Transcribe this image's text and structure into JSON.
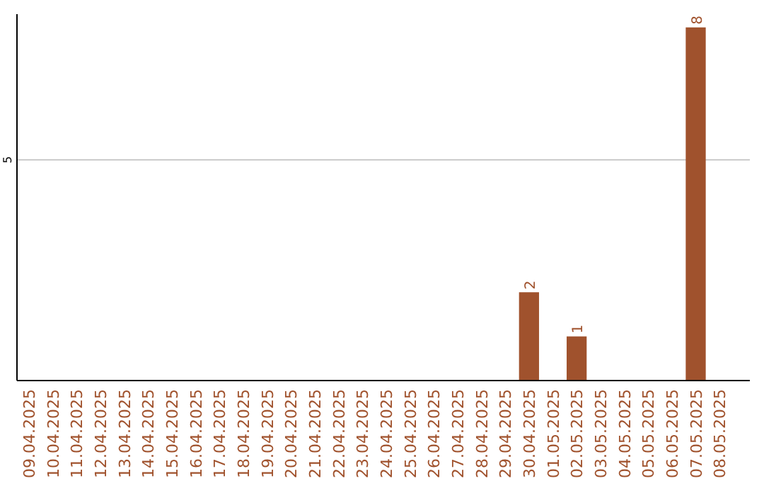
{
  "chart_data": {
    "type": "bar",
    "categories": [
      "09.04.2025",
      "10.04.2025",
      "11.04.2025",
      "12.04.2025",
      "13.04.2025",
      "14.04.2025",
      "15.04.2025",
      "16.04.2025",
      "17.04.2025",
      "18.04.2025",
      "19.04.2025",
      "20.04.2025",
      "21.04.2025",
      "22.04.2025",
      "23.04.2025",
      "24.04.2025",
      "25.04.2025",
      "26.04.2025",
      "27.04.2025",
      "28.04.2025",
      "29.04.2025",
      "30.04.2025",
      "01.05.2025",
      "02.05.2025",
      "03.05.2025",
      "04.05.2025",
      "05.05.2025",
      "06.05.2025",
      "07.05.2025",
      "08.05.2025"
    ],
    "values": [
      null,
      null,
      null,
      null,
      null,
      null,
      null,
      null,
      null,
      null,
      null,
      null,
      null,
      null,
      null,
      null,
      null,
      null,
      null,
      null,
      null,
      2,
      null,
      1,
      null,
      null,
      null,
      null,
      8,
      null
    ],
    "color": "#a0522d",
    "ylim": [
      0,
      8.3
    ],
    "yticks": [
      5
    ],
    "grid": "y",
    "data_labels": true
  }
}
